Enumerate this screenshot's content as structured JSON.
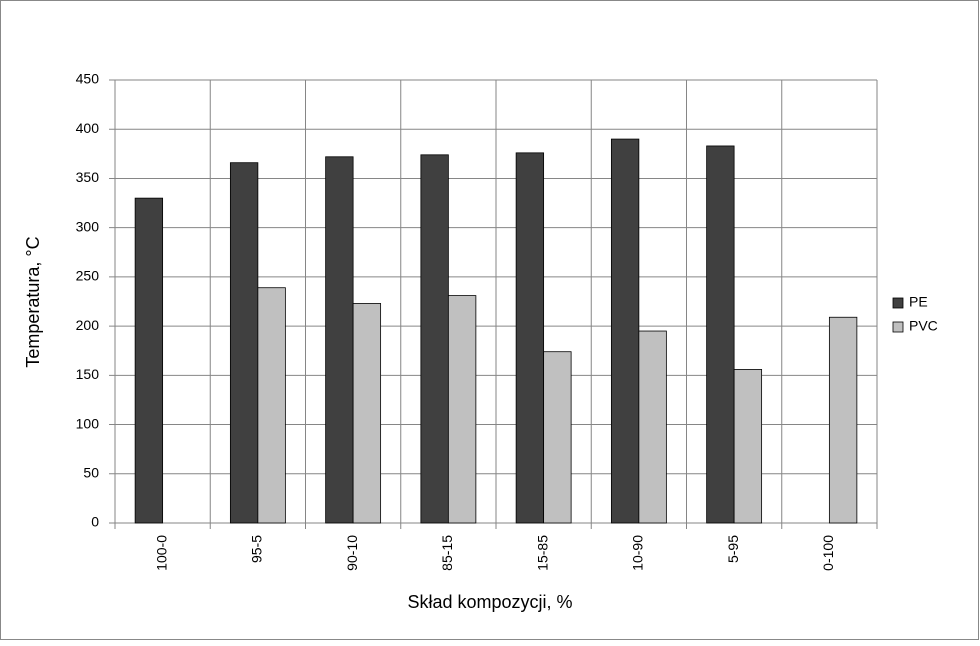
{
  "chart_data": {
    "type": "bar",
    "x_label": "Skład  kompozycji, %",
    "y_label": "Temperatura, °C",
    "categories": [
      "100-0",
      "95-5",
      "90-10",
      "85-15",
      "15-85",
      "10-90",
      "5-95",
      "0-100"
    ],
    "series": [
      {
        "name": "PE",
        "color": "#404040",
        "values": [
          330,
          366,
          372,
          374,
          376,
          390,
          383,
          null
        ]
      },
      {
        "name": "PVC",
        "color": "#c0c0c0",
        "values": [
          null,
          239,
          223,
          231,
          174,
          195,
          156,
          209
        ]
      }
    ],
    "ylim": [
      0,
      450
    ],
    "yticks": [
      0,
      50,
      100,
      150,
      200,
      250,
      300,
      350,
      400,
      450
    ],
    "grid": true,
    "legend": "right"
  }
}
